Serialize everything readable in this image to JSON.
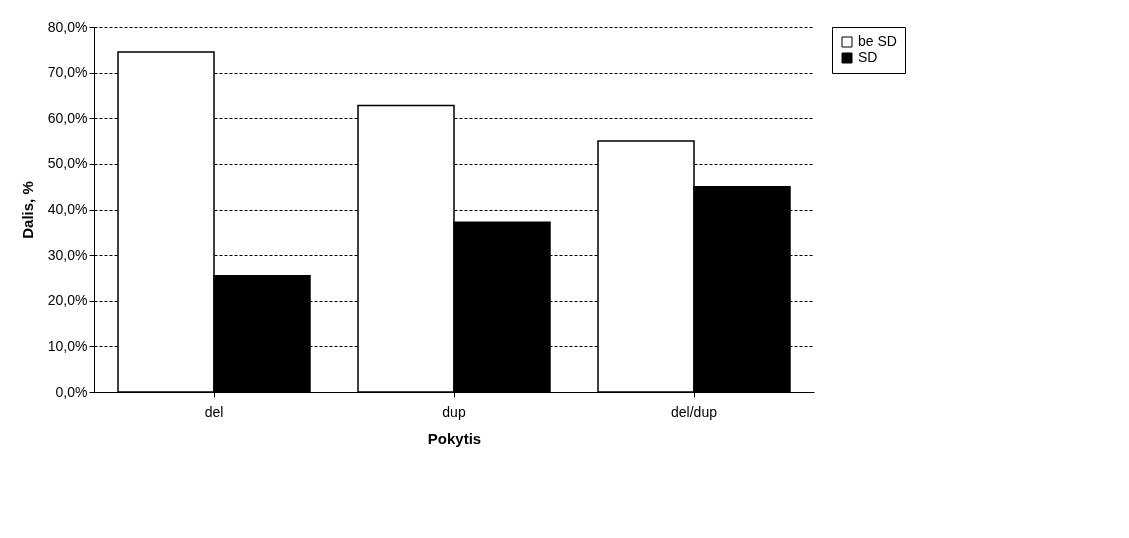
{
  "chart_data": {
    "type": "bar",
    "xlabel": "Pokytis",
    "ylabel": "Dalis, %",
    "categories": [
      "del",
      "dup",
      "del/dup"
    ],
    "series": [
      {
        "name": "be SD",
        "color": "#ffffff",
        "values": [
          74.5,
          62.8,
          55.0
        ]
      },
      {
        "name": "SD",
        "color": "#000000",
        "values": [
          25.5,
          37.2,
          45.0
        ]
      }
    ],
    "ylim": [
      0,
      80
    ],
    "yticks": [
      {
        "value": 0,
        "label": "0,0%"
      },
      {
        "value": 10,
        "label": "10,0%"
      },
      {
        "value": 20,
        "label": "20,0%"
      },
      {
        "value": 30,
        "label": "30,0%"
      },
      {
        "value": 40,
        "label": "40,0%"
      },
      {
        "value": 50,
        "label": "50,0%"
      },
      {
        "value": 60,
        "label": "60,0%"
      },
      {
        "value": 70,
        "label": "70,0%"
      },
      {
        "value": 80,
        "label": "80,0%"
      }
    ],
    "grid": "y",
    "legend": "right"
  }
}
